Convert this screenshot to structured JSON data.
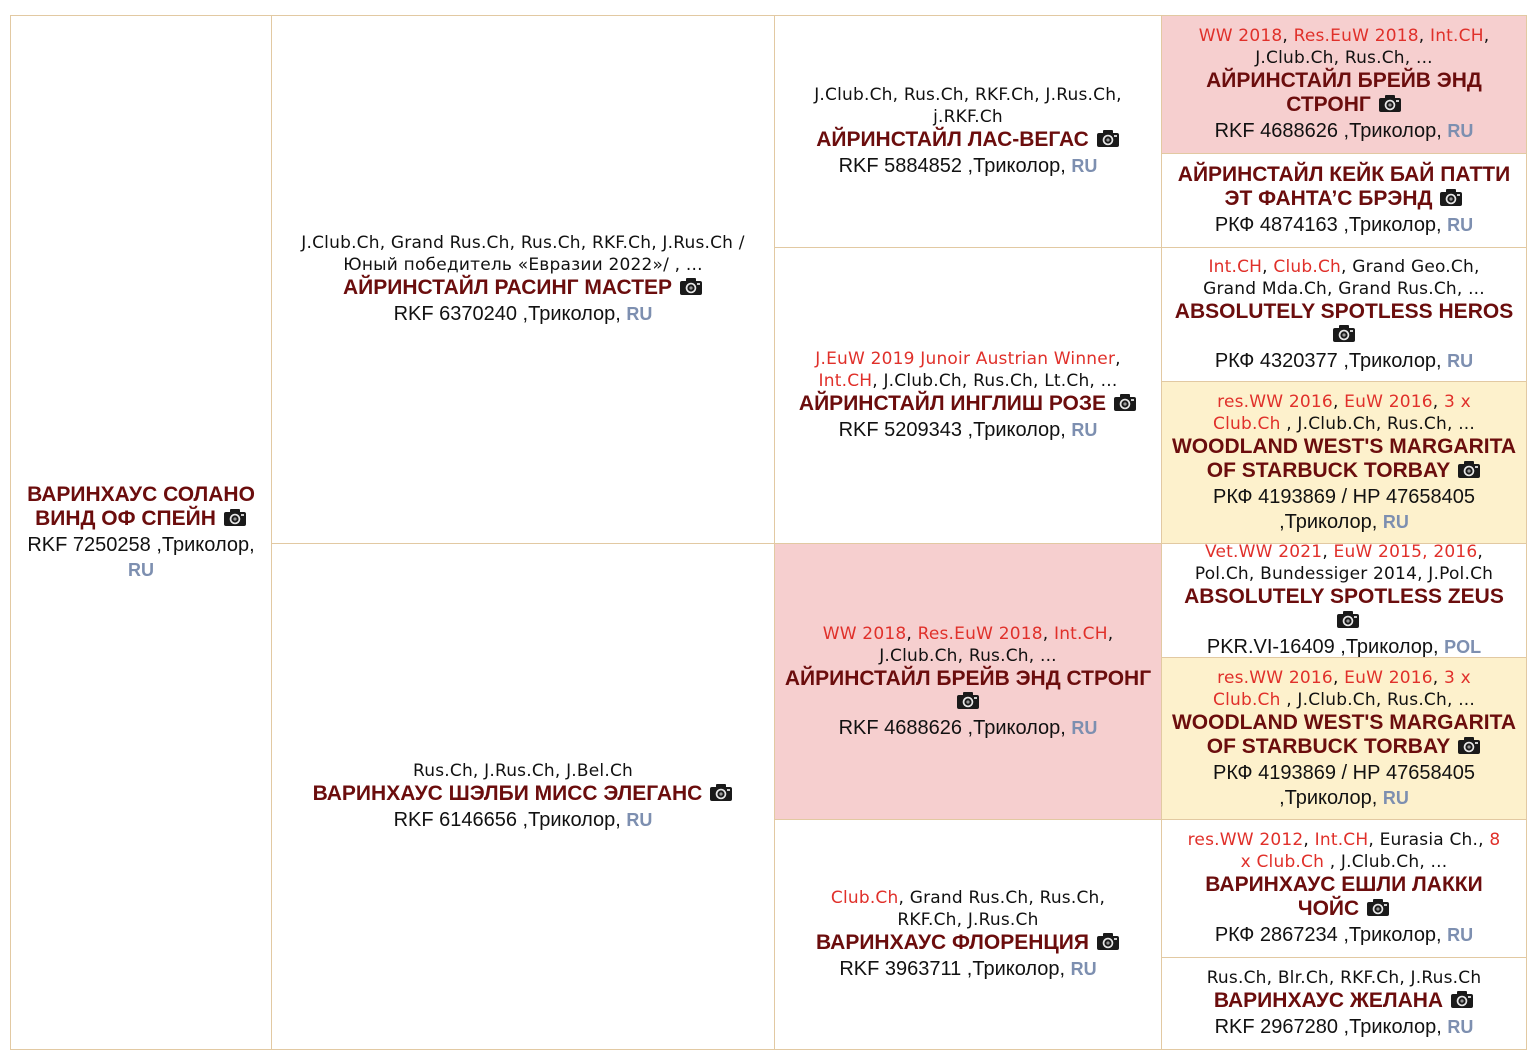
{
  "accent_colors": {
    "title_highlight": "#e0302a",
    "dog_name": "#6b0d0d",
    "country": "#7d8fb0",
    "border": "#e2c9a2",
    "pink_cell": "#f6cfcf",
    "yellow_cell": "#fdf1cc"
  },
  "icon": "camera-icon",
  "pedigree": [
    {
      "key": "subject",
      "titles": [],
      "name_lines": [
        "ВАРИНХАУС СОЛАНО",
        "ВИНД ОФ СПЕЙН"
      ],
      "reg_lines": [
        "RKF 7250258 ,Триколор,"
      ],
      "reg_tail": "",
      "country": "RU",
      "country_newline": true
    },
    {
      "key": "sire",
      "titles": [
        [
          {
            "t": "J.Club.Ch, Grand Rus.Ch, Rus.Ch, RKF.Ch, J.Rus.Ch /",
            "h": false
          }
        ],
        [
          {
            "t": "Юный победитель «Евразии 2022»/ , ...",
            "h": false
          }
        ]
      ],
      "name_lines": [
        "АЙРИНСТАЙЛ РАСИНГ МАСТЕР"
      ],
      "reg_lines": [],
      "reg_tail": "RKF 6370240 ,Триколор, ",
      "country": "RU"
    },
    {
      "key": "dam",
      "titles": [
        [
          {
            "t": "Rus.Ch, J.Rus.Ch, J.Bel.Ch",
            "h": false
          }
        ]
      ],
      "name_lines": [
        "ВАРИНХАУС ШЭЛБИ МИСС ЭЛЕГАНС"
      ],
      "reg_lines": [],
      "reg_tail": "RKF 6146656 ,Триколор, ",
      "country": "RU"
    },
    {
      "key": "ss",
      "titles": [
        [
          {
            "t": "J.Club.Ch, Rus.Ch, RKF.Ch, J.Rus.Ch,",
            "h": false
          }
        ],
        [
          {
            "t": "j.RKF.Ch",
            "h": false
          }
        ]
      ],
      "name_lines": [
        "АЙРИНСТАЙЛ ЛАС-ВЕГАС"
      ],
      "reg_lines": [],
      "reg_tail": "RKF 5884852 ,Триколор, ",
      "country": "RU"
    },
    {
      "key": "sd",
      "titles": [
        [
          {
            "t": "J.EuW 2019 Junoir Austrian Winner",
            "h": true
          },
          {
            "t": ",",
            "h": false
          }
        ],
        [
          {
            "t": "Int.CH",
            "h": true
          },
          {
            "t": ", J.Club.Ch, Rus.Ch, Lt.Ch, ...",
            "h": false
          }
        ]
      ],
      "name_lines": [
        "АЙРИНСТАЙЛ ИНГЛИШ РОЗЕ"
      ],
      "reg_lines": [],
      "reg_tail": "RKF 5209343 ,Триколор, ",
      "country": "RU"
    },
    {
      "key": "ds",
      "titles": [
        [
          {
            "t": "WW 2018",
            "h": true
          },
          {
            "t": ", ",
            "h": false
          },
          {
            "t": "Res.EuW 2018",
            "h": true
          },
          {
            "t": ", ",
            "h": false
          },
          {
            "t": "Int.CH",
            "h": true
          },
          {
            "t": ",",
            "h": false
          }
        ],
        [
          {
            "t": "J.Club.Ch, Rus.Ch, ...",
            "h": false
          }
        ]
      ],
      "name_lines": [
        "АЙРИНСТАЙЛ БРЕЙВ ЭНД СТРОНГ"
      ],
      "reg_lines": [],
      "reg_tail": "RKF 4688626 ,Триколор, ",
      "country": "RU"
    },
    {
      "key": "dd",
      "titles": [
        [
          {
            "t": "Club.Ch",
            "h": true
          },
          {
            "t": ", Grand Rus.Ch, Rus.Ch,",
            "h": false
          }
        ],
        [
          {
            "t": "RKF.Ch, J.Rus.Ch",
            "h": false
          }
        ]
      ],
      "name_lines": [
        "ВАРИНХАУС ФЛОРЕНЦИЯ"
      ],
      "reg_lines": [],
      "reg_tail": "RKF 3963711 ,Триколор, ",
      "country": "RU"
    },
    {
      "key": "sss",
      "titles": [
        [
          {
            "t": "WW 2018",
            "h": true
          },
          {
            "t": ", ",
            "h": false
          },
          {
            "t": "Res.EuW 2018",
            "h": true
          },
          {
            "t": ", ",
            "h": false
          },
          {
            "t": "Int.CH",
            "h": true
          },
          {
            "t": ",",
            "h": false
          }
        ],
        [
          {
            "t": "J.Club.Ch, Rus.Ch, ...",
            "h": false
          }
        ]
      ],
      "name_lines": [
        "АЙРИНСТАЙЛ БРЕЙВ ЭНД",
        "СТРОНГ"
      ],
      "reg_lines": [],
      "reg_tail": "RKF 4688626 ,Триколор, ",
      "country": "RU"
    },
    {
      "key": "ssd",
      "titles": [],
      "name_lines": [
        "АЙРИНСТАЙЛ КЕЙК БАЙ ПАТТИ",
        "ЭТ ФАНТА’С БРЭНД"
      ],
      "reg_lines": [],
      "reg_tail": "РКФ 4874163 ,Триколор, ",
      "country": "RU"
    },
    {
      "key": "sds",
      "titles": [
        [
          {
            "t": "Int.CH",
            "h": true
          },
          {
            "t": ", ",
            "h": false
          },
          {
            "t": "Club.Ch",
            "h": true
          },
          {
            "t": ", Grand Geo.Ch,",
            "h": false
          }
        ],
        [
          {
            "t": "Grand Mda.Ch, Grand Rus.Ch, ...",
            "h": false
          }
        ]
      ],
      "name_lines": [
        "ABSOLUTELY SPOTLESS HEROS"
      ],
      "reg_lines": [],
      "reg_tail": "РКФ 4320377 ,Триколор, ",
      "country": "RU"
    },
    {
      "key": "sdd",
      "titles": [
        [
          {
            "t": "res.WW 2016",
            "h": true
          },
          {
            "t": ", ",
            "h": false
          },
          {
            "t": "EuW 2016",
            "h": true
          },
          {
            "t": ", ",
            "h": false
          },
          {
            "t": "3 x",
            "h": true
          }
        ],
        [
          {
            "t": "Club.Ch",
            "h": true
          },
          {
            "t": " , J.Club.Ch, Rus.Ch, ...",
            "h": false
          }
        ]
      ],
      "name_lines": [
        "WOODLAND WEST'S MARGARITA",
        "OF STARBUCK TORBAY"
      ],
      "reg_lines": [
        "РКФ 4193869 / НР 47658405"
      ],
      "reg_tail": ",Триколор, ",
      "country": "RU"
    },
    {
      "key": "dss",
      "titles": [
        [
          {
            "t": "Vet.WW 2021",
            "h": true
          },
          {
            "t": ", ",
            "h": false
          },
          {
            "t": "EuW 2015, 2016",
            "h": true
          },
          {
            "t": ",",
            "h": false
          }
        ],
        [
          {
            "t": "Pol.Ch, Bundessiger 2014, J.Pol.Ch",
            "h": false
          }
        ]
      ],
      "name_lines": [
        "ABSOLUTELY SPOTLESS ZEUS"
      ],
      "reg_lines": [],
      "reg_tail": "PKR.VI-16409 ,Триколор, ",
      "country": "POL"
    },
    {
      "key": "dsd",
      "titles": [
        [
          {
            "t": "res.WW 2016",
            "h": true
          },
          {
            "t": ", ",
            "h": false
          },
          {
            "t": "EuW 2016",
            "h": true
          },
          {
            "t": ", ",
            "h": false
          },
          {
            "t": "3 x",
            "h": true
          }
        ],
        [
          {
            "t": "Club.Ch",
            "h": true
          },
          {
            "t": " , J.Club.Ch, Rus.Ch, ...",
            "h": false
          }
        ]
      ],
      "name_lines": [
        "WOODLAND WEST'S MARGARITA",
        "OF STARBUCK TORBAY"
      ],
      "reg_lines": [
        "РКФ 4193869 / НР 47658405"
      ],
      "reg_tail": ",Триколор, ",
      "country": "RU"
    },
    {
      "key": "dds",
      "titles": [
        [
          {
            "t": "res.WW 2012",
            "h": true
          },
          {
            "t": ", ",
            "h": false
          },
          {
            "t": "Int.CH",
            "h": true
          },
          {
            "t": ", Eurasia Ch., ",
            "h": false
          },
          {
            "t": "8",
            "h": true
          }
        ],
        [
          {
            "t": "x Club.Ch",
            "h": true
          },
          {
            "t": " , J.Club.Ch, ...",
            "h": false
          }
        ]
      ],
      "name_lines": [
        "ВАРИНХАУС ЕШЛИ ЛАККИ",
        "ЧОЙС"
      ],
      "reg_lines": [],
      "reg_tail": "РКФ 2867234 ,Триколор, ",
      "country": "RU"
    },
    {
      "key": "ddd",
      "titles": [
        [
          {
            "t": "Rus.Ch, Blr.Ch, RKF.Ch, J.Rus.Ch",
            "h": false
          }
        ]
      ],
      "name_lines": [
        "ВАРИНХАУС ЖЕЛАНА"
      ],
      "reg_lines": [],
      "reg_tail": "RKF 2967280 ,Триколор, ",
      "country": "RU"
    }
  ]
}
